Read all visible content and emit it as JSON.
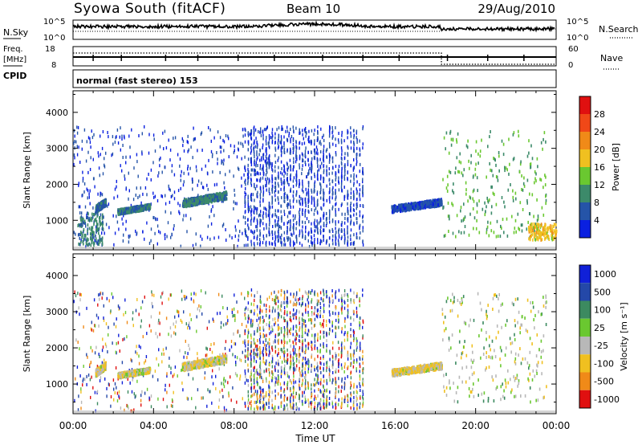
{
  "header": {
    "title": "Syowa South (fitACF)",
    "beam": "Beam 10",
    "date": "29/Aug/2010"
  },
  "strips": {
    "nsky": {
      "label": "N.Sky",
      "ticks": [
        "10^5",
        "10^0"
      ]
    },
    "nsearch": {
      "label": "N.Search",
      "ticks": [
        "10^5",
        "10^0"
      ]
    },
    "freq": {
      "label_line1": "Freq.",
      "label_line2": "[MHz]",
      "ticks": [
        "18",
        "8"
      ]
    },
    "nave": {
      "label": "Nave",
      "ticks": [
        "60",
        "0"
      ]
    },
    "cpid": {
      "label": "CPID",
      "text": "normal (fast stereo) 153"
    }
  },
  "x_axis": {
    "label": "Time UT",
    "ticks": [
      "00:00",
      "04:00",
      "08:00",
      "12:00",
      "16:00",
      "20:00",
      "00:00"
    ]
  },
  "chart_data": [
    {
      "type": "heatmap",
      "name": "power-panel",
      "xlabel": "Time UT",
      "ylabel": "Slant Range [km]",
      "xlim": [
        0,
        24
      ],
      "ylim": [
        180,
        4600
      ],
      "y_ticks": [
        1000,
        2000,
        3000,
        4000
      ],
      "colorbar": {
        "label": "Power [dB]",
        "range": [
          0,
          32
        ],
        "ticks": [
          4,
          8,
          12,
          16,
          20,
          24,
          28
        ],
        "colors": [
          "#0a20e0",
          "#2554a8",
          "#3c8a6a",
          "#6ac830",
          "#f0c020",
          "#f08a18",
          "#f04818",
          "#e01010"
        ]
      },
      "features": [
        {
          "what": "scatter echoes",
          "t_range": [
            0.0,
            12.5
          ],
          "range_km": [
            250,
            3600
          ],
          "value_db": 4
        },
        {
          "what": "near-range echoes",
          "t_range": [
            0.2,
            1.5
          ],
          "range_km": [
            300,
            1200
          ],
          "value_db": 9
        },
        {
          "what": "band",
          "t_range": [
            1.1,
            1.6
          ],
          "range_km": [
            1200,
            1600
          ],
          "value_db": 7
        },
        {
          "what": "band",
          "t_range": [
            2.2,
            3.8
          ],
          "range_km": [
            1150,
            1450
          ],
          "value_db": 8
        },
        {
          "what": "band",
          "t_range": [
            5.4,
            7.6
          ],
          "range_km": [
            1350,
            1800
          ],
          "value_db": 9
        },
        {
          "what": "streaks",
          "t_range": [
            8.5,
            14.5
          ],
          "range_km": [
            300,
            3600
          ],
          "value_db": 4
        },
        {
          "what": "band",
          "t_range": [
            15.8,
            18.3
          ],
          "range_km": [
            1200,
            1600
          ],
          "value_db": 5
        },
        {
          "what": "weak echoes",
          "t_range": [
            18.3,
            23.5
          ],
          "range_km": [
            500,
            3500
          ],
          "value_db": 12
        },
        {
          "what": "near-range echoes",
          "t_range": [
            22.6,
            24.0
          ],
          "range_km": [
            450,
            900
          ],
          "value_db": 18
        }
      ]
    },
    {
      "type": "heatmap",
      "name": "velocity-panel",
      "xlabel": "Time UT",
      "ylabel": "Slant Range [km]",
      "xlim": [
        0,
        24
      ],
      "ylim": [
        180,
        4600
      ],
      "y_ticks": [
        1000,
        2000,
        3000,
        4000
      ],
      "colorbar": {
        "label": "Velocity [m s⁻¹]",
        "ticks": [
          "1000",
          "500",
          "100",
          "25",
          "-25",
          "-100",
          "-500",
          "-1000"
        ],
        "colors": [
          "#1020d8",
          "#2448a8",
          "#3c8a60",
          "#6ac830",
          "#b8b8b8",
          "#f0c020",
          "#f08a18",
          "#e01010"
        ]
      },
      "features": [
        {
          "what": "scatter echoes",
          "t_range": [
            0.0,
            12.5
          ],
          "range_km": [
            250,
            3600
          ],
          "value": "mixed"
        },
        {
          "what": "band",
          "t_range": [
            1.1,
            1.6
          ],
          "range_km": [
            1200,
            1600
          ],
          "value": -100
        },
        {
          "what": "band",
          "t_range": [
            2.2,
            3.8
          ],
          "range_km": [
            1150,
            1450
          ],
          "value": -100
        },
        {
          "what": "band",
          "t_range": [
            5.4,
            7.6
          ],
          "range_km": [
            1350,
            1800
          ],
          "value": -100
        },
        {
          "what": "streaks",
          "t_range": [
            8.5,
            14.5
          ],
          "range_km": [
            300,
            3600
          ],
          "value": "mixed"
        },
        {
          "what": "band",
          "t_range": [
            15.8,
            18.3
          ],
          "range_km": [
            1200,
            1600
          ],
          "value": -100
        },
        {
          "what": "weak echoes",
          "t_range": [
            18.3,
            23.5
          ],
          "range_km": [
            500,
            3500
          ],
          "value": -50
        }
      ]
    }
  ]
}
